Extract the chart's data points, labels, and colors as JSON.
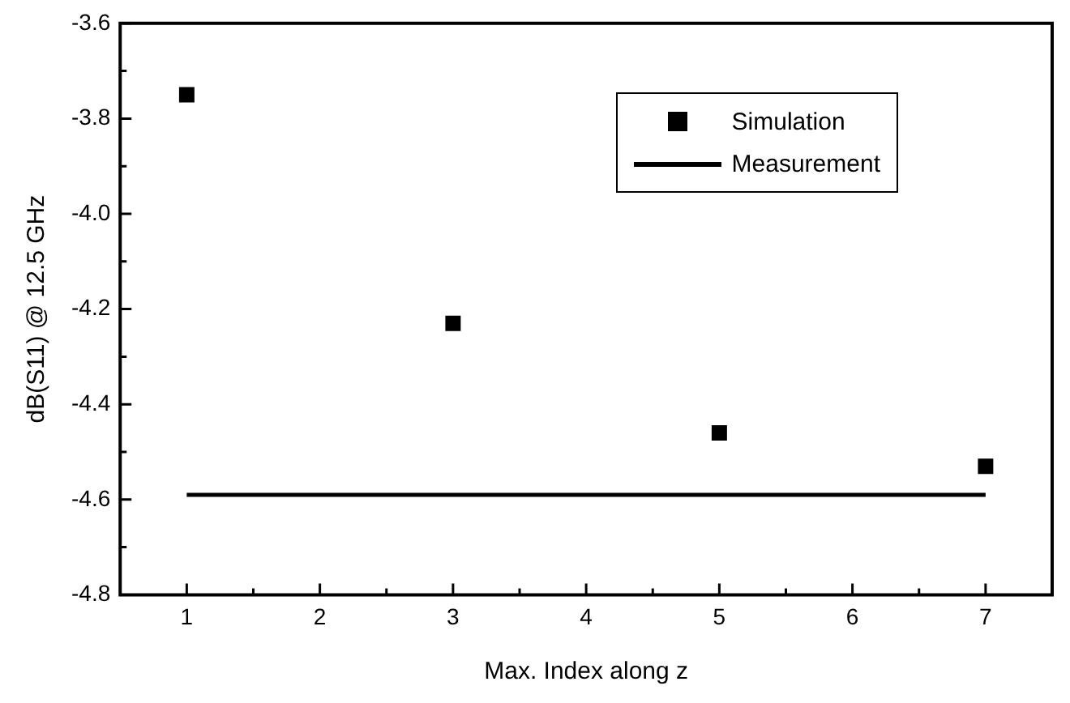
{
  "chart_data": {
    "type": "scatter",
    "xlabel": "Max. Index along z",
    "ylabel": "dB(S11) @ 12.5 GHz",
    "xlim": [
      0.5,
      7.5
    ],
    "xticks": [
      1,
      {
        "value": 1.5,
        "label": null
      },
      2,
      {
        "value": 2.5,
        "label": null
      },
      3,
      {
        "value": 3.5,
        "label": null
      },
      4,
      {
        "value": 4.5,
        "label": null
      },
      5,
      {
        "value": 5.5,
        "label": null
      },
      6,
      {
        "value": 6.5,
        "label": null
      },
      7
    ],
    "ylim": [
      -4.8,
      -3.6
    ],
    "yticks": [
      {
        "value": -4.8,
        "label": "-4.8"
      },
      {
        "value": -4.7,
        "label": null
      },
      {
        "value": -4.6,
        "label": "-4.6"
      },
      {
        "value": -4.5,
        "label": null
      },
      {
        "value": -4.4,
        "label": "-4.4"
      },
      {
        "value": -4.3,
        "label": null
      },
      {
        "value": -4.2,
        "label": "-4.2"
      },
      {
        "value": -4.1,
        "label": null
      },
      {
        "value": -4.0,
        "label": "-4.0"
      },
      {
        "value": -3.9,
        "label": null
      },
      {
        "value": -3.8,
        "label": "-3.8"
      },
      {
        "value": -3.7,
        "label": null
      },
      {
        "value": -3.6,
        "label": "-3.6"
      }
    ],
    "series": [
      {
        "name": "Simulation",
        "marker": "square",
        "color": "#000000",
        "x": [
          1,
          3,
          5,
          7
        ],
        "values": [
          -3.75,
          -4.23,
          -4.46,
          -4.53
        ]
      },
      {
        "name": "Measurement",
        "type": "line",
        "marker": "none",
        "line_style": "solid",
        "color": "#000000",
        "x": [
          1,
          7
        ],
        "values": [
          -4.59,
          -4.59
        ]
      }
    ],
    "legend": "top right",
    "grid": false
  }
}
